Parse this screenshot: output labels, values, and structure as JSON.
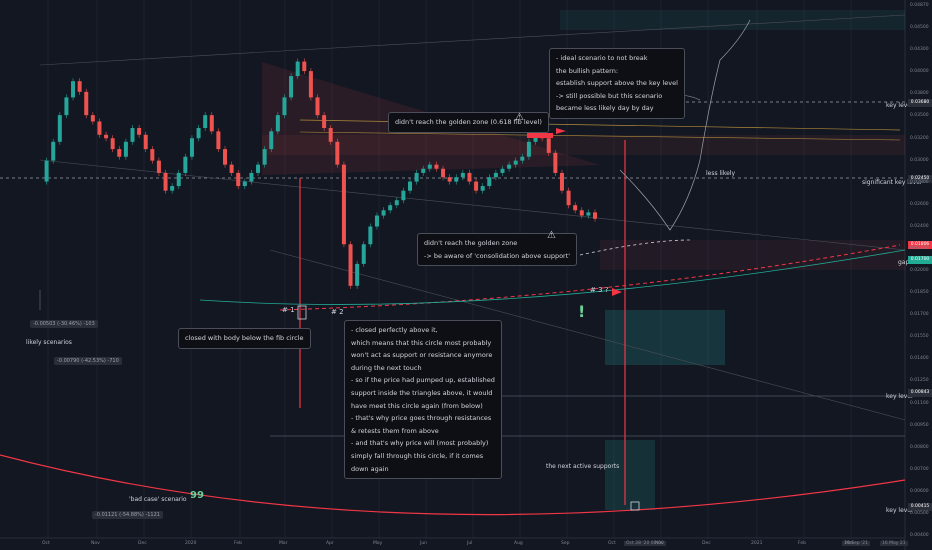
{
  "chart_data": {
    "type": "candlestick",
    "x_ticks": [
      "Oct",
      "Nov",
      "Dec",
      "2020",
      "Feb",
      "Mar",
      "Apr",
      "May",
      "Jun",
      "Jul",
      "Aug",
      "Sep",
      "Oct",
      "Nov",
      "Dec",
      "2021",
      "Feb",
      "Mar"
    ],
    "y_ticks": [
      "0.04870",
      "0.04500",
      "0.04300",
      "0.04000",
      "0.03800",
      "0.03500",
      "0.03200",
      "0.03000",
      "0.02800",
      "0.02600",
      "0.02400",
      "0.02200",
      "0.02000",
      "0.01850",
      "0.01700",
      "0.01550",
      "0.01400",
      "0.01250",
      "0.01100",
      "0.00950",
      "0.00800",
      "0.00700",
      "0.00600",
      "0.00500",
      "0.00400"
    ],
    "y_range": [
      0.0038,
      0.05
    ],
    "price_series": [
      0.021,
      0.0235,
      0.026,
      0.03,
      0.033,
      0.036,
      0.034,
      0.03,
      0.029,
      0.027,
      0.0265,
      0.025,
      0.024,
      0.026,
      0.028,
      0.027,
      0.025,
      0.0235,
      0.022,
      0.02,
      0.0205,
      0.022,
      0.024,
      0.0265,
      0.028,
      0.03,
      0.0275,
      0.025,
      0.023,
      0.022,
      0.0205,
      0.021,
      0.022,
      0.023,
      0.025,
      0.0275,
      0.03,
      0.033,
      0.037,
      0.04,
      0.038,
      0.033,
      0.03,
      0.028,
      0.026,
      0.023,
      0.015,
      0.012,
      0.0135,
      0.015,
      0.0165,
      0.0175,
      0.018,
      0.0185,
      0.019,
      0.02,
      0.021,
      0.022,
      0.0225,
      0.023,
      0.0225,
      0.0215,
      0.021,
      0.0215,
      0.022,
      0.021,
      0.02,
      0.0205,
      0.0215,
      0.022,
      0.0225,
      0.023,
      0.0235,
      0.024,
      0.026,
      0.0275,
      0.0265,
      0.0245,
      0.022,
      0.02,
      0.0185,
      0.018,
      0.0175,
      0.0178,
      0.0172
    ]
  },
  "annotations": {
    "ideal": [
      "- ideal scenario to not break",
      "  the bullish pattern:",
      "  establish support above the key level",
      "-> still possible but this scenario",
      "  became less likely day by day"
    ],
    "golden_top": "didn't reach the golden zone (0.618 fib level)",
    "golden_bottom": [
      "didn't reach the golden zone",
      "-> be aware of 'consolidation above support'"
    ],
    "closed_below": "closed with body below the fib circle",
    "closed_above": [
      "- closed perfectly above it,",
      "  which means that this circle most probably",
      "  won't act as support or resistance anymore",
      "  during the next touch",
      "- so if the price had pumped up, established",
      "  support inside the triangles above, it would",
      "  have meet this circle again (from below)",
      "- that's why price goes through resistances",
      "  & retests them from above",
      "- and that's why price will (most probably)",
      "  simply fall through this circle, if it comes",
      "  down again"
    ],
    "less_likely": "less likely",
    "likely": "likely scenarios",
    "next_supports": "the next active supports",
    "bad_case": "'bad case' scenario",
    "marker1": "# 1",
    "marker2": "# 2",
    "marker3": "# 3 ?",
    "quote_icon": "99",
    "exclaim": "!"
  },
  "levels": {
    "key_level": "key level",
    "significant": "significant key level",
    "gap": "gap"
  },
  "measures": [
    "-0.00503 (-30.46%) -103",
    "-0.00790 (-42.53%) -710",
    "-0.01121 (-54.88%) -1121"
  ],
  "price_boxes": [
    "0.01806",
    "0.01700",
    "0.03680",
    "0.02450",
    "0.00843",
    "0.00415"
  ],
  "bottom_right": [
    "Oct 28 '20 00:00",
    "10 Sep '21",
    "16 May 21"
  ],
  "colors": {
    "bg": "#131722",
    "up": "#26a69a",
    "down": "#ef5350",
    "red": "#f23645",
    "green": "#22ab94"
  }
}
